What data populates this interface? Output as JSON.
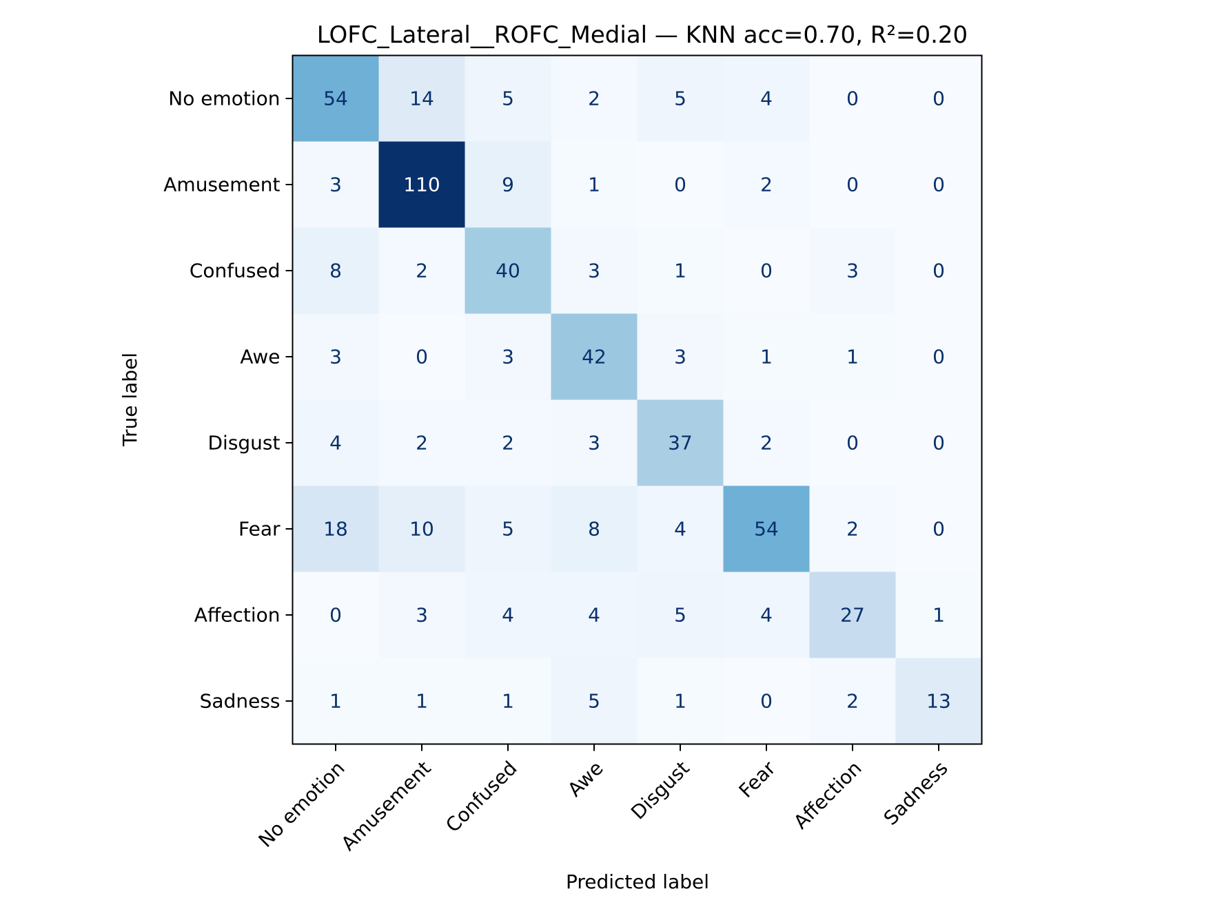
{
  "chart_data": {
    "type": "heatmap",
    "title": "LOFC_Lateral__ROFC_Medial — KNN acc=0.70, R²=0.20",
    "xlabel": "Predicted label",
    "ylabel": "True label",
    "x_categories": [
      "No emotion",
      "Amusement",
      "Confused",
      "Awe",
      "Disgust",
      "Fear",
      "Affection",
      "Sadness"
    ],
    "y_categories": [
      "No emotion",
      "Amusement",
      "Confused",
      "Awe",
      "Disgust",
      "Fear",
      "Affection",
      "Sadness"
    ],
    "values": [
      [
        54,
        14,
        5,
        2,
        5,
        4,
        0,
        0
      ],
      [
        3,
        110,
        9,
        1,
        0,
        2,
        0,
        0
      ],
      [
        8,
        2,
        40,
        3,
        1,
        0,
        3,
        0
      ],
      [
        3,
        0,
        3,
        42,
        3,
        1,
        1,
        0
      ],
      [
        4,
        2,
        2,
        3,
        37,
        2,
        0,
        0
      ],
      [
        18,
        10,
        5,
        8,
        4,
        54,
        2,
        0
      ],
      [
        0,
        3,
        4,
        4,
        5,
        4,
        27,
        1
      ],
      [
        1,
        1,
        1,
        5,
        1,
        0,
        2,
        13
      ]
    ],
    "colormap": "Blues",
    "value_range": [
      0,
      110
    ],
    "grid": false,
    "colorbar": false
  }
}
